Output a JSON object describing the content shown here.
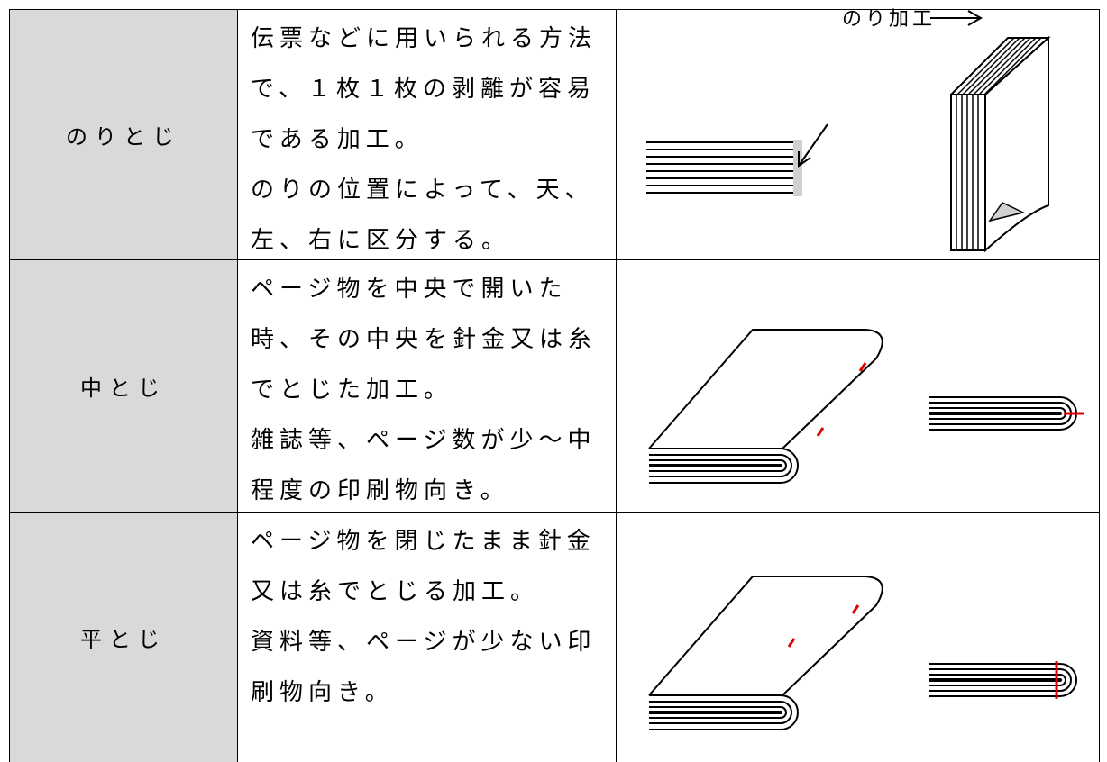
{
  "table": {
    "rows": [
      {
        "label": "のりとじ",
        "description": [
          "伝票などに用いられる方法",
          "で、１枚１枚の剥離が容易",
          "である加工。",
          "のりの位置によって、天、",
          "左、右に区分する。"
        ],
        "figure_label": "のり加工"
      },
      {
        "label": "中とじ",
        "description": [
          "ページ物を中央で開いた",
          "時、その中央を針金又は糸",
          "でとじた加工。",
          "雑誌等、ページ数が少～中",
          "程度の印刷物向き。"
        ]
      },
      {
        "label": "平とじ",
        "description": [
          "ページ物を閉じたまま針金",
          "又は糸でとじる加工。",
          "資料等、ページが少ない印",
          "刷物向き。"
        ]
      }
    ]
  }
}
